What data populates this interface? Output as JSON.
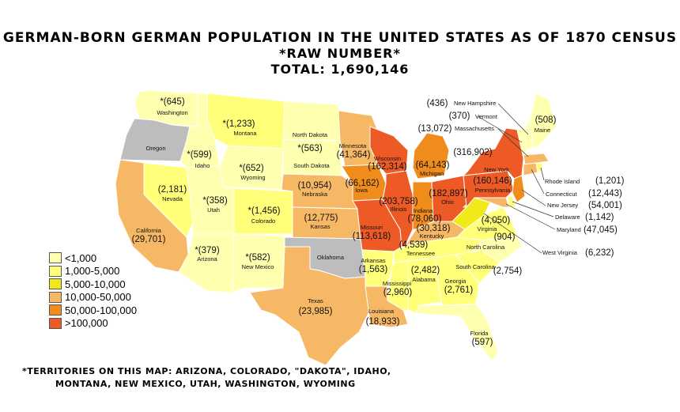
{
  "title": {
    "line1": "GERMAN-BORN GERMAN POPULATION IN THE UNITED STATES AS OF 1870 CENSUS",
    "line2": "*RAW NUMBER*",
    "line3": "TOTAL: 1,690,146"
  },
  "colors": {
    "lt1000": "#ffffb0",
    "c1000_5000": "#ffff7a",
    "c5000_10000": "#f0ea1a",
    "c10000_50000": "#f7b866",
    "c50000_100000": "#f08c1c",
    "gt100000": "#ee5a25",
    "no_data": "#bdbdbd"
  },
  "legend": [
    {
      "label": "<1,000",
      "color": "#ffffb0"
    },
    {
      "label": "1,000-5,000",
      "color": "#ffff7a"
    },
    {
      "label": "5,000-10,000",
      "color": "#f0ea1a"
    },
    {
      "label": "10,000-50,000",
      "color": "#f7b866"
    },
    {
      "label": "50,000-100,000",
      "color": "#f08c1c"
    },
    {
      "label": ">100,000",
      "color": "#ee5a25"
    }
  ],
  "states": [
    {
      "name": "Washington",
      "value": "*(645)"
    },
    {
      "name": "Oregon",
      "value": ""
    },
    {
      "name": "Montana",
      "value": "*(1,233)"
    },
    {
      "name": "Idaho",
      "value": "*(599)"
    },
    {
      "name": "North Dakota",
      "value": "*(563)"
    },
    {
      "name": "South Dakota",
      "value": ""
    },
    {
      "name": "Wyoming",
      "value": "*(652)"
    },
    {
      "name": "Nevada",
      "value": "(2,181)"
    },
    {
      "name": "Utah",
      "value": "*(358)"
    },
    {
      "name": "Colorado",
      "value": "*(1,456)"
    },
    {
      "name": "California",
      "value": "(29,701)"
    },
    {
      "name": "Arizona",
      "value": "*(379)"
    },
    {
      "name": "New Mexico",
      "value": "*(582)"
    },
    {
      "name": "Nebraska",
      "value": "(10,954)"
    },
    {
      "name": "Kansas",
      "value": "(12,775)"
    },
    {
      "name": "Oklahoma",
      "value": ""
    },
    {
      "name": "Texas",
      "value": "(23,985)"
    },
    {
      "name": "Minnesota",
      "value": "(41,364)"
    },
    {
      "name": "Iowa",
      "value": "(66,162)"
    },
    {
      "name": "Missouri",
      "value": "(113,618)"
    },
    {
      "name": "Arkansas",
      "value": "(1,563)"
    },
    {
      "name": "Louisiana",
      "value": "(18,933)"
    },
    {
      "name": "Wisconsin",
      "value": "(162,314)"
    },
    {
      "name": "Illinois",
      "value": "(203,758)"
    },
    {
      "name": "Michigan",
      "value": "(64,143)"
    },
    {
      "name": "Indiana",
      "value": "(78,060)"
    },
    {
      "name": "Ohio",
      "value": "(182,897)"
    },
    {
      "name": "Kentucky",
      "value": "(30,318)"
    },
    {
      "name": "Tennessee",
      "value": "(4,539)"
    },
    {
      "name": "Mississippi",
      "value": "(2,960)"
    },
    {
      "name": "Alabama",
      "value": "(2,482)"
    },
    {
      "name": "Georgia",
      "value": "(2,761)"
    },
    {
      "name": "Florida",
      "value": "(597)"
    },
    {
      "name": "South Carolina",
      "value": "(2,754)"
    },
    {
      "name": "North Carolina",
      "value": "(904)"
    },
    {
      "name": "Virginia",
      "value": "(4,050)"
    },
    {
      "name": "West Virginia",
      "value": "(6,232)"
    },
    {
      "name": "Pennsylvania",
      "value": "(160,146)"
    },
    {
      "name": "New York",
      "value": "(316,902)"
    },
    {
      "name": "Massachusetts",
      "value": "(13,072)"
    },
    {
      "name": "Vermont",
      "value": "(370)"
    },
    {
      "name": "New Hampshire",
      "value": "(436)"
    },
    {
      "name": "Maine",
      "value": "(508)"
    },
    {
      "name": "Rhode Island",
      "value": "(1,201)"
    },
    {
      "name": "Connecticut",
      "value": "(12,443)"
    },
    {
      "name": "New Jersey",
      "value": "(54,001)"
    },
    {
      "name": "Delaware",
      "value": "(1,142)"
    },
    {
      "name": "Maryland",
      "value": "(47,045)"
    }
  ],
  "footnote": {
    "line1": "*TERRITORIES ON THIS MAP:  ARIZONA, COLORADO, \"DAKOTA\", IDAHO,",
    "line2": "MONTANA, NEW MEXICO, UTAH, WASHINGTON, WYOMING"
  }
}
